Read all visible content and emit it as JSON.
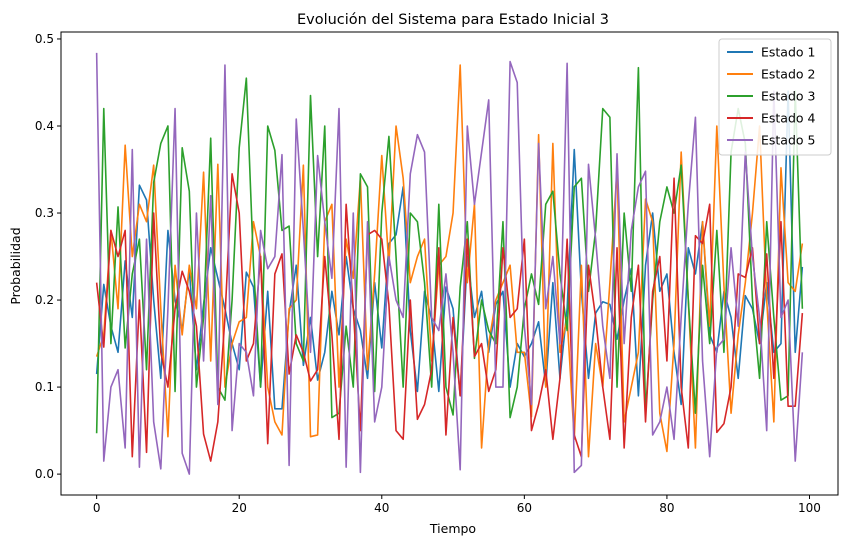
{
  "chart_data": {
    "type": "line",
    "title": "Evolución del Sistema para Estado Inicial 3",
    "xlabel": "Tiempo",
    "ylabel": "Probabilidad",
    "xlim": [
      -5,
      104
    ],
    "ylim": [
      -0.024,
      0.508
    ],
    "xticks": [
      0,
      20,
      40,
      60,
      80,
      100
    ],
    "yticks": [
      0.0,
      0.1,
      0.2,
      0.3,
      0.4,
      0.5
    ],
    "xtick_labels": [
      "0",
      "20",
      "40",
      "60",
      "80",
      "100"
    ],
    "ytick_labels": [
      "0.0",
      "0.1",
      "0.2",
      "0.3",
      "0.4",
      "0.5"
    ],
    "grid": false,
    "legend_position": "top-right",
    "series": [
      {
        "name": "Estado 1",
        "color": "#1f77b4",
        "values": [
          0.115,
          0.218,
          0.17,
          0.14,
          0.245,
          0.18,
          0.332,
          0.315,
          0.2,
          0.11,
          0.28,
          0.2,
          0.165,
          0.235,
          0.12,
          0.195,
          0.26,
          0.225,
          0.19,
          0.15,
          0.12,
          0.232,
          0.215,
          0.1,
          0.21,
          0.075,
          0.075,
          0.185,
          0.24,
          0.125,
          0.18,
          0.108,
          0.14,
          0.21,
          0.16,
          0.25,
          0.19,
          0.165,
          0.11,
          0.22,
          0.145,
          0.265,
          0.275,
          0.33,
          0.165,
          0.095,
          0.21,
          0.178,
          0.095,
          0.215,
          0.19,
          0.09,
          0.25,
          0.18,
          0.21,
          0.14,
          0.195,
          0.21,
          0.1,
          0.15,
          0.135,
          0.15,
          0.175,
          0.102,
          0.22,
          0.11,
          0.19,
          0.373,
          0.21,
          0.11,
          0.185,
          0.198,
          0.195,
          0.155,
          0.2,
          0.236,
          0.09,
          0.24,
          0.3,
          0.21,
          0.23,
          0.14,
          0.08,
          0.26,
          0.23,
          0.29,
          0.16,
          0.14,
          0.21,
          0.18,
          0.11,
          0.205,
          0.19,
          0.15,
          0.22,
          0.14,
          0.15,
          0.44,
          0.14,
          0.238
        ]
      },
      {
        "name": "Estado 2",
        "color": "#ff7f0e",
        "values": [
          0.135,
          0.16,
          0.28,
          0.19,
          0.378,
          0.25,
          0.31,
          0.29,
          0.355,
          0.19,
          0.043,
          0.24,
          0.16,
          0.24,
          0.19,
          0.347,
          0.13,
          0.356,
          0.1,
          0.15,
          0.175,
          0.18,
          0.29,
          0.25,
          0.1,
          0.06,
          0.045,
          0.19,
          0.2,
          0.355,
          0.043,
          0.045,
          0.29,
          0.31,
          0.1,
          0.27,
          0.225,
          0.34,
          0.12,
          0.23,
          0.366,
          0.24,
          0.4,
          0.34,
          0.22,
          0.25,
          0.27,
          0.13,
          0.24,
          0.25,
          0.3,
          0.47,
          0.22,
          0.31,
          0.03,
          0.15,
          0.2,
          0.22,
          0.24,
          0.14,
          0.14,
          0.066,
          0.39,
          0.1,
          0.38,
          0.14,
          0.18,
          0.04,
          0.24,
          0.02,
          0.15,
          0.1,
          0.22,
          0.35,
          0.06,
          0.1,
          0.14,
          0.316,
          0.29,
          0.07,
          0.026,
          0.15,
          0.37,
          0.2,
          0.03,
          0.29,
          0.17,
          0.4,
          0.216,
          0.07,
          0.16,
          0.22,
          0.3,
          0.4,
          0.2,
          0.06,
          0.352,
          0.22,
          0.21,
          0.265
        ]
      },
      {
        "name": "Estado 3",
        "color": "#2ca02c",
        "values": [
          0.047,
          0.42,
          0.15,
          0.307,
          0.145,
          0.23,
          0.27,
          0.12,
          0.335,
          0.38,
          0.4,
          0.095,
          0.375,
          0.325,
          0.1,
          0.18,
          0.386,
          0.1,
          0.085,
          0.2,
          0.375,
          0.455,
          0.24,
          0.1,
          0.4,
          0.372,
          0.28,
          0.285,
          0.15,
          0.13,
          0.435,
          0.25,
          0.4,
          0.065,
          0.07,
          0.17,
          0.1,
          0.345,
          0.33,
          0.095,
          0.3,
          0.388,
          0.25,
          0.1,
          0.3,
          0.29,
          0.22,
          0.1,
          0.31,
          0.1,
          0.068,
          0.215,
          0.29,
          0.133,
          0.2,
          0.165,
          0.15,
          0.29,
          0.065,
          0.1,
          0.19,
          0.23,
          0.195,
          0.31,
          0.325,
          0.23,
          0.165,
          0.33,
          0.34,
          0.21,
          0.28,
          0.42,
          0.41,
          0.1,
          0.3,
          0.21,
          0.467,
          0.07,
          0.2,
          0.29,
          0.33,
          0.3,
          0.355,
          0.2,
          0.07,
          0.24,
          0.15,
          0.28,
          0.14,
          0.37,
          0.42,
          0.38,
          0.2,
          0.11,
          0.29,
          0.18,
          0.085,
          0.09,
          0.44,
          0.19
        ]
      },
      {
        "name": "Estado 4",
        "color": "#d62728",
        "values": [
          0.22,
          0.146,
          0.28,
          0.25,
          0.28,
          0.02,
          0.2,
          0.025,
          0.3,
          0.14,
          0.1,
          0.19,
          0.233,
          0.21,
          0.17,
          0.046,
          0.015,
          0.06,
          0.18,
          0.345,
          0.3,
          0.13,
          0.15,
          0.25,
          0.035,
          0.23,
          0.253,
          0.115,
          0.16,
          0.14,
          0.107,
          0.12,
          0.25,
          0.16,
          0.04,
          0.31,
          0.19,
          0.05,
          0.275,
          0.28,
          0.27,
          0.195,
          0.05,
          0.04,
          0.2,
          0.063,
          0.08,
          0.12,
          0.26,
          0.045,
          0.18,
          0.09,
          0.27,
          0.135,
          0.15,
          0.095,
          0.12,
          0.26,
          0.18,
          0.19,
          0.27,
          0.05,
          0.08,
          0.12,
          0.04,
          0.11,
          0.27,
          0.045,
          0.02,
          0.24,
          0.18,
          0.1,
          0.04,
          0.26,
          0.03,
          0.18,
          0.24,
          0.06,
          0.21,
          0.25,
          0.13,
          0.34,
          0.1,
          0.03,
          0.274,
          0.265,
          0.31,
          0.048,
          0.058,
          0.1,
          0.23,
          0.226,
          0.26,
          0.15,
          0.253,
          0.11,
          0.29,
          0.078,
          0.078,
          0.185
        ]
      },
      {
        "name": "Estado 5",
        "color": "#9467bd",
        "values": [
          0.484,
          0.015,
          0.1,
          0.12,
          0.03,
          0.373,
          0.008,
          0.27,
          0.06,
          0.006,
          0.19,
          0.42,
          0.024,
          0.0,
          0.3,
          0.13,
          0.32,
          0.08,
          0.47,
          0.05,
          0.15,
          0.14,
          0.09,
          0.28,
          0.236,
          0.25,
          0.367,
          0.01,
          0.408,
          0.28,
          0.14,
          0.366,
          0.29,
          0.225,
          0.42,
          0.008,
          0.3,
          0.002,
          0.29,
          0.06,
          0.1,
          0.25,
          0.2,
          0.18,
          0.345,
          0.39,
          0.37,
          0.18,
          0.165,
          0.23,
          0.14,
          0.005,
          0.4,
          0.31,
          0.37,
          0.43,
          0.1,
          0.1,
          0.474,
          0.45,
          0.17,
          0.08,
          0.38,
          0.19,
          0.25,
          0.15,
          0.472,
          0.002,
          0.01,
          0.356,
          0.27,
          0.17,
          0.11,
          0.368,
          0.15,
          0.28,
          0.33,
          0.348,
          0.045,
          0.06,
          0.1,
          0.04,
          0.18,
          0.31,
          0.41,
          0.13,
          0.02,
          0.145,
          0.155,
          0.26,
          0.17,
          0.37,
          0.25,
          0.18,
          0.05,
          0.44,
          0.18,
          0.2,
          0.015,
          0.14
        ]
      }
    ]
  }
}
